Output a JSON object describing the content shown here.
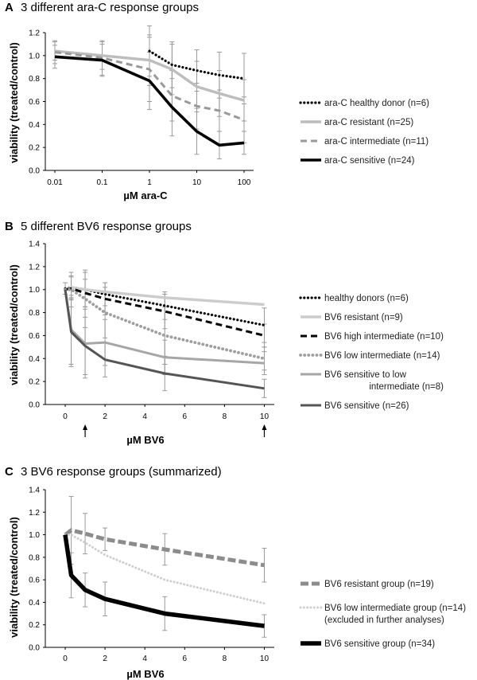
{
  "panels": [
    {
      "letter": "A",
      "chart_data": {
        "type": "line",
        "title": "3 different ara-C response groups",
        "xlabel": "µM ara-C",
        "ylabel": "viability (treated/control)",
        "x_scale": "log",
        "x": [
          0.01,
          0.1,
          1,
          3,
          10,
          30,
          100
        ],
        "xticks": [
          "0.01",
          "0.1",
          "1",
          "10",
          "100"
        ],
        "ylim": [
          0,
          1.2
        ],
        "yticks": [
          "0.0",
          "0.2",
          "0.4",
          "0.6",
          "0.8",
          "1.0",
          "1.2"
        ],
        "series": [
          {
            "name": "ara-C healthy donor (n=6)",
            "style": "dotted-black",
            "color": "#000000",
            "x": [
              1,
              3,
              10,
              30,
              100
            ],
            "values": [
              1.04,
              0.92,
              0.87,
              0.83,
              0.8
            ],
            "err": [
              0.22,
              0.2,
              0.18,
              0.2,
              0.22
            ]
          },
          {
            "name": "ara-C resistant (n=25)",
            "style": "solid-light",
            "color": "#bdbdbd",
            "x": [
              0.01,
              0.1,
              1,
              3,
              10,
              30,
              100
            ],
            "values": [
              1.04,
              1.0,
              0.96,
              0.88,
              0.73,
              0.67,
              0.61
            ],
            "err": [
              0.08,
              0.12,
              0.22,
              0.22,
              0.22,
              0.2,
              0.18
            ]
          },
          {
            "name": "ara-C intermediate (n=11)",
            "style": "dashed-gray",
            "color": "#999999",
            "x": [
              0.01,
              0.1,
              1,
              3,
              10,
              30,
              100
            ],
            "values": [
              1.03,
              0.98,
              0.88,
              0.65,
              0.56,
              0.52,
              0.44
            ],
            "err": [
              0.1,
              0.15,
              0.28,
              0.22,
              0.2,
              0.18,
              0.2
            ]
          },
          {
            "name": "ara-C sensitive (n=24)",
            "style": "solid-black",
            "color": "#000000",
            "x": [
              0.01,
              0.1,
              1,
              3,
              10,
              30,
              100
            ],
            "values": [
              0.99,
              0.96,
              0.78,
              0.55,
              0.34,
              0.22,
              0.24
            ],
            "err": [
              0.1,
              0.14,
              0.25,
              0.25,
              0.2,
              0.12,
              0.1
            ]
          }
        ]
      }
    },
    {
      "letter": "B",
      "chart_data": {
        "type": "line",
        "title": "5 different BV6 response groups",
        "xlabel": "µM BV6",
        "ylabel": "viability (treated/control)",
        "x_scale": "linear",
        "xlim": [
          -1,
          10.5
        ],
        "xticks": [
          "0",
          "2",
          "4",
          "6",
          "8",
          "10"
        ],
        "ylim": [
          0,
          1.4
        ],
        "yticks": [
          "0.0",
          "0.2",
          "0.4",
          "0.6",
          "0.8",
          "1.0",
          "1.2",
          "1.4"
        ],
        "arrow_x": [
          1,
          10
        ],
        "series": [
          {
            "name": "healthy donors (n=6)",
            "style": "dotted-black",
            "color": "#000000",
            "x": [
              0,
              0.3,
              1,
              2,
              5,
              10
            ],
            "values": [
              1.01,
              1.02,
              1.0,
              0.96,
              0.86,
              0.69
            ],
            "err": [
              0.05,
              0.1,
              0.15,
              0.1,
              0.12,
              0.15
            ]
          },
          {
            "name": "BV6 resistant (n=9)",
            "style": "solid-light",
            "color": "#cccccc",
            "x": [
              0,
              0.3,
              1,
              2,
              5,
              10
            ],
            "values": [
              1.0,
              1.02,
              1.0,
              0.98,
              0.93,
              0.87
            ],
            "err": [
              0.0,
              0.0,
              0.0,
              0.0,
              0.0,
              0.0
            ]
          },
          {
            "name": "BV6 high intermediate (n=10)",
            "style": "dashed-black",
            "color": "#000000",
            "x": [
              0,
              0.3,
              1,
              2,
              5,
              10
            ],
            "values": [
              1.0,
              1.01,
              0.97,
              0.92,
              0.81,
              0.6
            ],
            "err": [
              0.0,
              0.1,
              0.12,
              0.14,
              0.15,
              0.1
            ]
          },
          {
            "name": "BV6 low intermediate (n=14)",
            "style": "dotted-gray",
            "color": "#9e9e9e",
            "x": [
              0,
              0.3,
              1,
              2,
              5,
              10
            ],
            "values": [
              1.0,
              1.0,
              0.92,
              0.8,
              0.6,
              0.4
            ],
            "err": [
              0.0,
              0.15,
              0.25,
              0.22,
              0.25,
              0.1
            ]
          },
          {
            "name": "BV6 sensitive to low intermediate (n=8)",
            "name_line1": "BV6 sensitive to low",
            "name_line2": "intermediate (n=8)",
            "style": "solid-gray",
            "color": "#a6a6a6",
            "x": [
              0,
              0.3,
              1,
              2,
              5,
              10
            ],
            "values": [
              1.0,
              0.65,
              0.53,
              0.54,
              0.41,
              0.36
            ],
            "err": [
              0.0,
              0.3,
              0.3,
              0.2,
              0.15,
              0.1
            ]
          },
          {
            "name": "BV6 sensitive (n=26)",
            "style": "solid-dark",
            "color": "#555555",
            "x": [
              0,
              0.3,
              1,
              2,
              5,
              10
            ],
            "values": [
              1.0,
              0.63,
              0.51,
              0.39,
              0.27,
              0.14
            ],
            "err": [
              0.0,
              0.3,
              0.25,
              0.15,
              0.15,
              0.08
            ]
          }
        ]
      }
    },
    {
      "letter": "C",
      "chart_data": {
        "type": "line",
        "title": "3 BV6 response groups (summarized)",
        "xlabel": "µM BV6",
        "ylabel": "viability (treated/control)",
        "x_scale": "linear",
        "xlim": [
          -1,
          10.5
        ],
        "xticks": [
          "0",
          "2",
          "4",
          "6",
          "8",
          "10"
        ],
        "ylim": [
          0,
          1.4
        ],
        "yticks": [
          "0.0",
          "0.2",
          "0.4",
          "0.6",
          "0.8",
          "1.0",
          "1.2",
          "1.4"
        ],
        "series": [
          {
            "name": "BV6 resistant group (n=19)",
            "style": "dashed-thick-gray",
            "color": "#8c8c8c",
            "x": [
              0,
              0.3,
              1,
              2,
              5,
              10
            ],
            "values": [
              1.0,
              1.04,
              1.01,
              0.96,
              0.87,
              0.73
            ],
            "err": [
              0.0,
              0.3,
              0.18,
              0.1,
              0.14,
              0.15
            ]
          },
          {
            "name": "BV6 low intermediate group (n=14)",
            "name_line1": "BV6 low intermediate group (n=14)",
            "name_line2": "(excluded in further analyses)",
            "style": "dotted-light",
            "color": "#cfcfcf",
            "x": [
              0,
              0.3,
              1,
              2,
              5,
              10
            ],
            "values": [
              1.0,
              1.0,
              0.93,
              0.82,
              0.6,
              0.39
            ],
            "err": [
              0.0,
              0.0,
              0.0,
              0.0,
              0.0,
              0.0
            ]
          },
          {
            "name": "BV6 sensitive group (n=34)",
            "style": "solid-thick-black",
            "color": "#000000",
            "x": [
              0,
              0.3,
              1,
              2,
              5,
              10
            ],
            "values": [
              1.0,
              0.64,
              0.51,
              0.43,
              0.3,
              0.19
            ],
            "err": [
              0.0,
              0.2,
              0.15,
              0.15,
              0.15,
              0.1
            ]
          }
        ]
      }
    }
  ]
}
